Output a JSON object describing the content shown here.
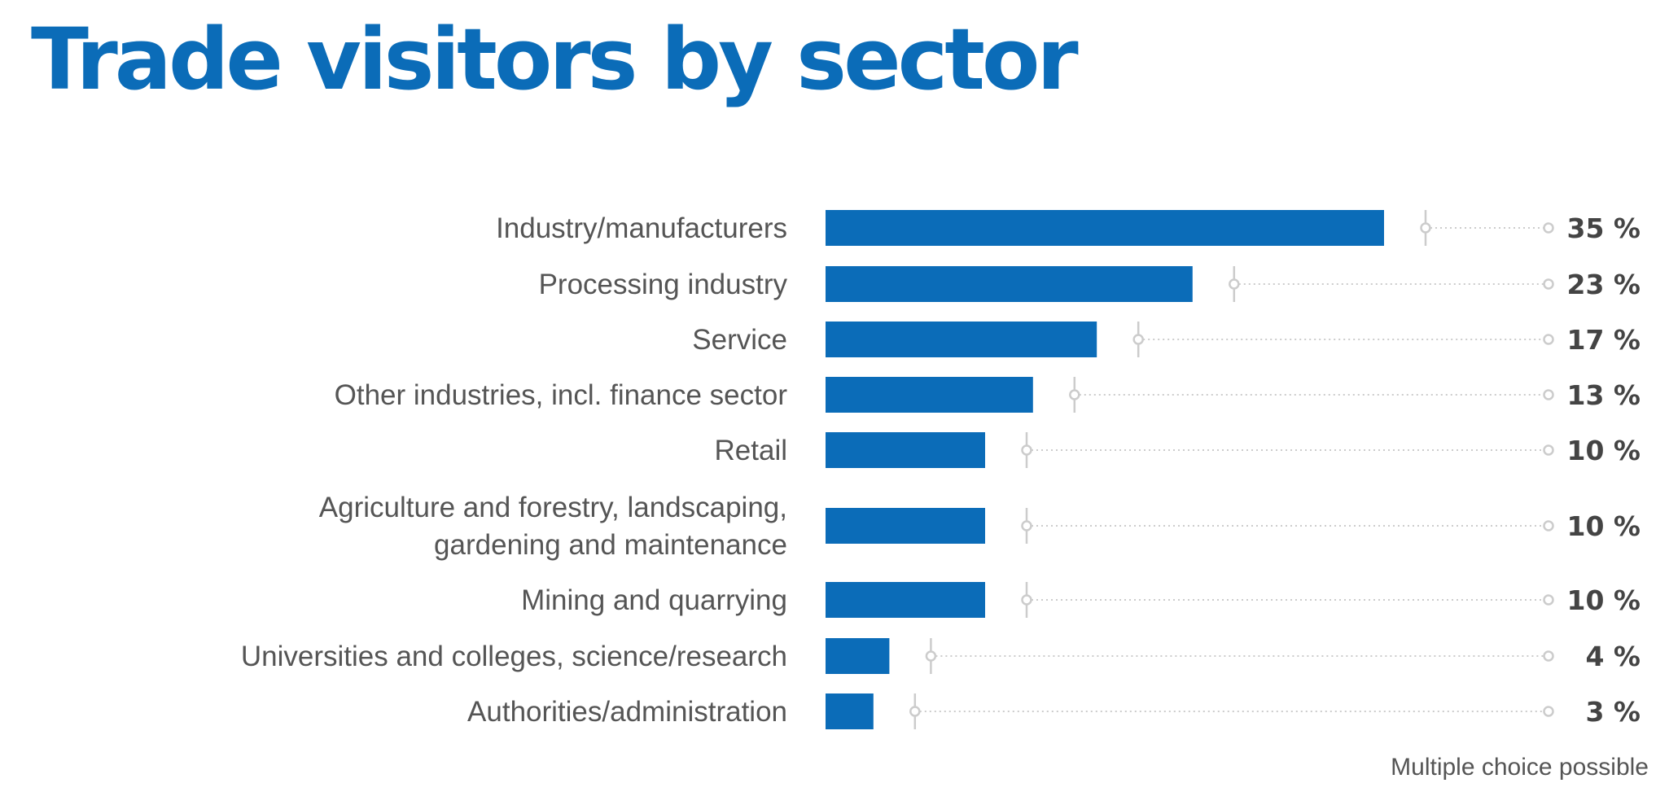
{
  "chart_data": {
    "type": "bar",
    "orientation": "horizontal",
    "title": "Trade visitors by sector",
    "footnote": "Multiple choice possible",
    "unit": "%",
    "categories": [
      [
        "Industry/manufacturers"
      ],
      [
        "Processing industry"
      ],
      [
        "Service"
      ],
      [
        "Other industries, incl. finance sector"
      ],
      [
        "Retail"
      ],
      [
        "Agriculture and forestry, landscaping,",
        "gardening and maintenance"
      ],
      [
        "Mining and quarrying"
      ],
      [
        "Universities and colleges, science/research"
      ],
      [
        "Authorities/administration"
      ]
    ],
    "values": [
      35,
      23,
      17,
      13,
      10,
      10,
      10,
      4,
      3
    ],
    "value_labels": [
      "35 %",
      "23 %",
      "17 %",
      "13 %",
      "10 %",
      "10 %",
      "10 %",
      "4 %",
      "3 %"
    ],
    "colors": {
      "bar": "#0b6cb8",
      "label": "#555555",
      "value": "#444444",
      "title": "#0b6cb8",
      "connector": "#cccccc"
    }
  }
}
